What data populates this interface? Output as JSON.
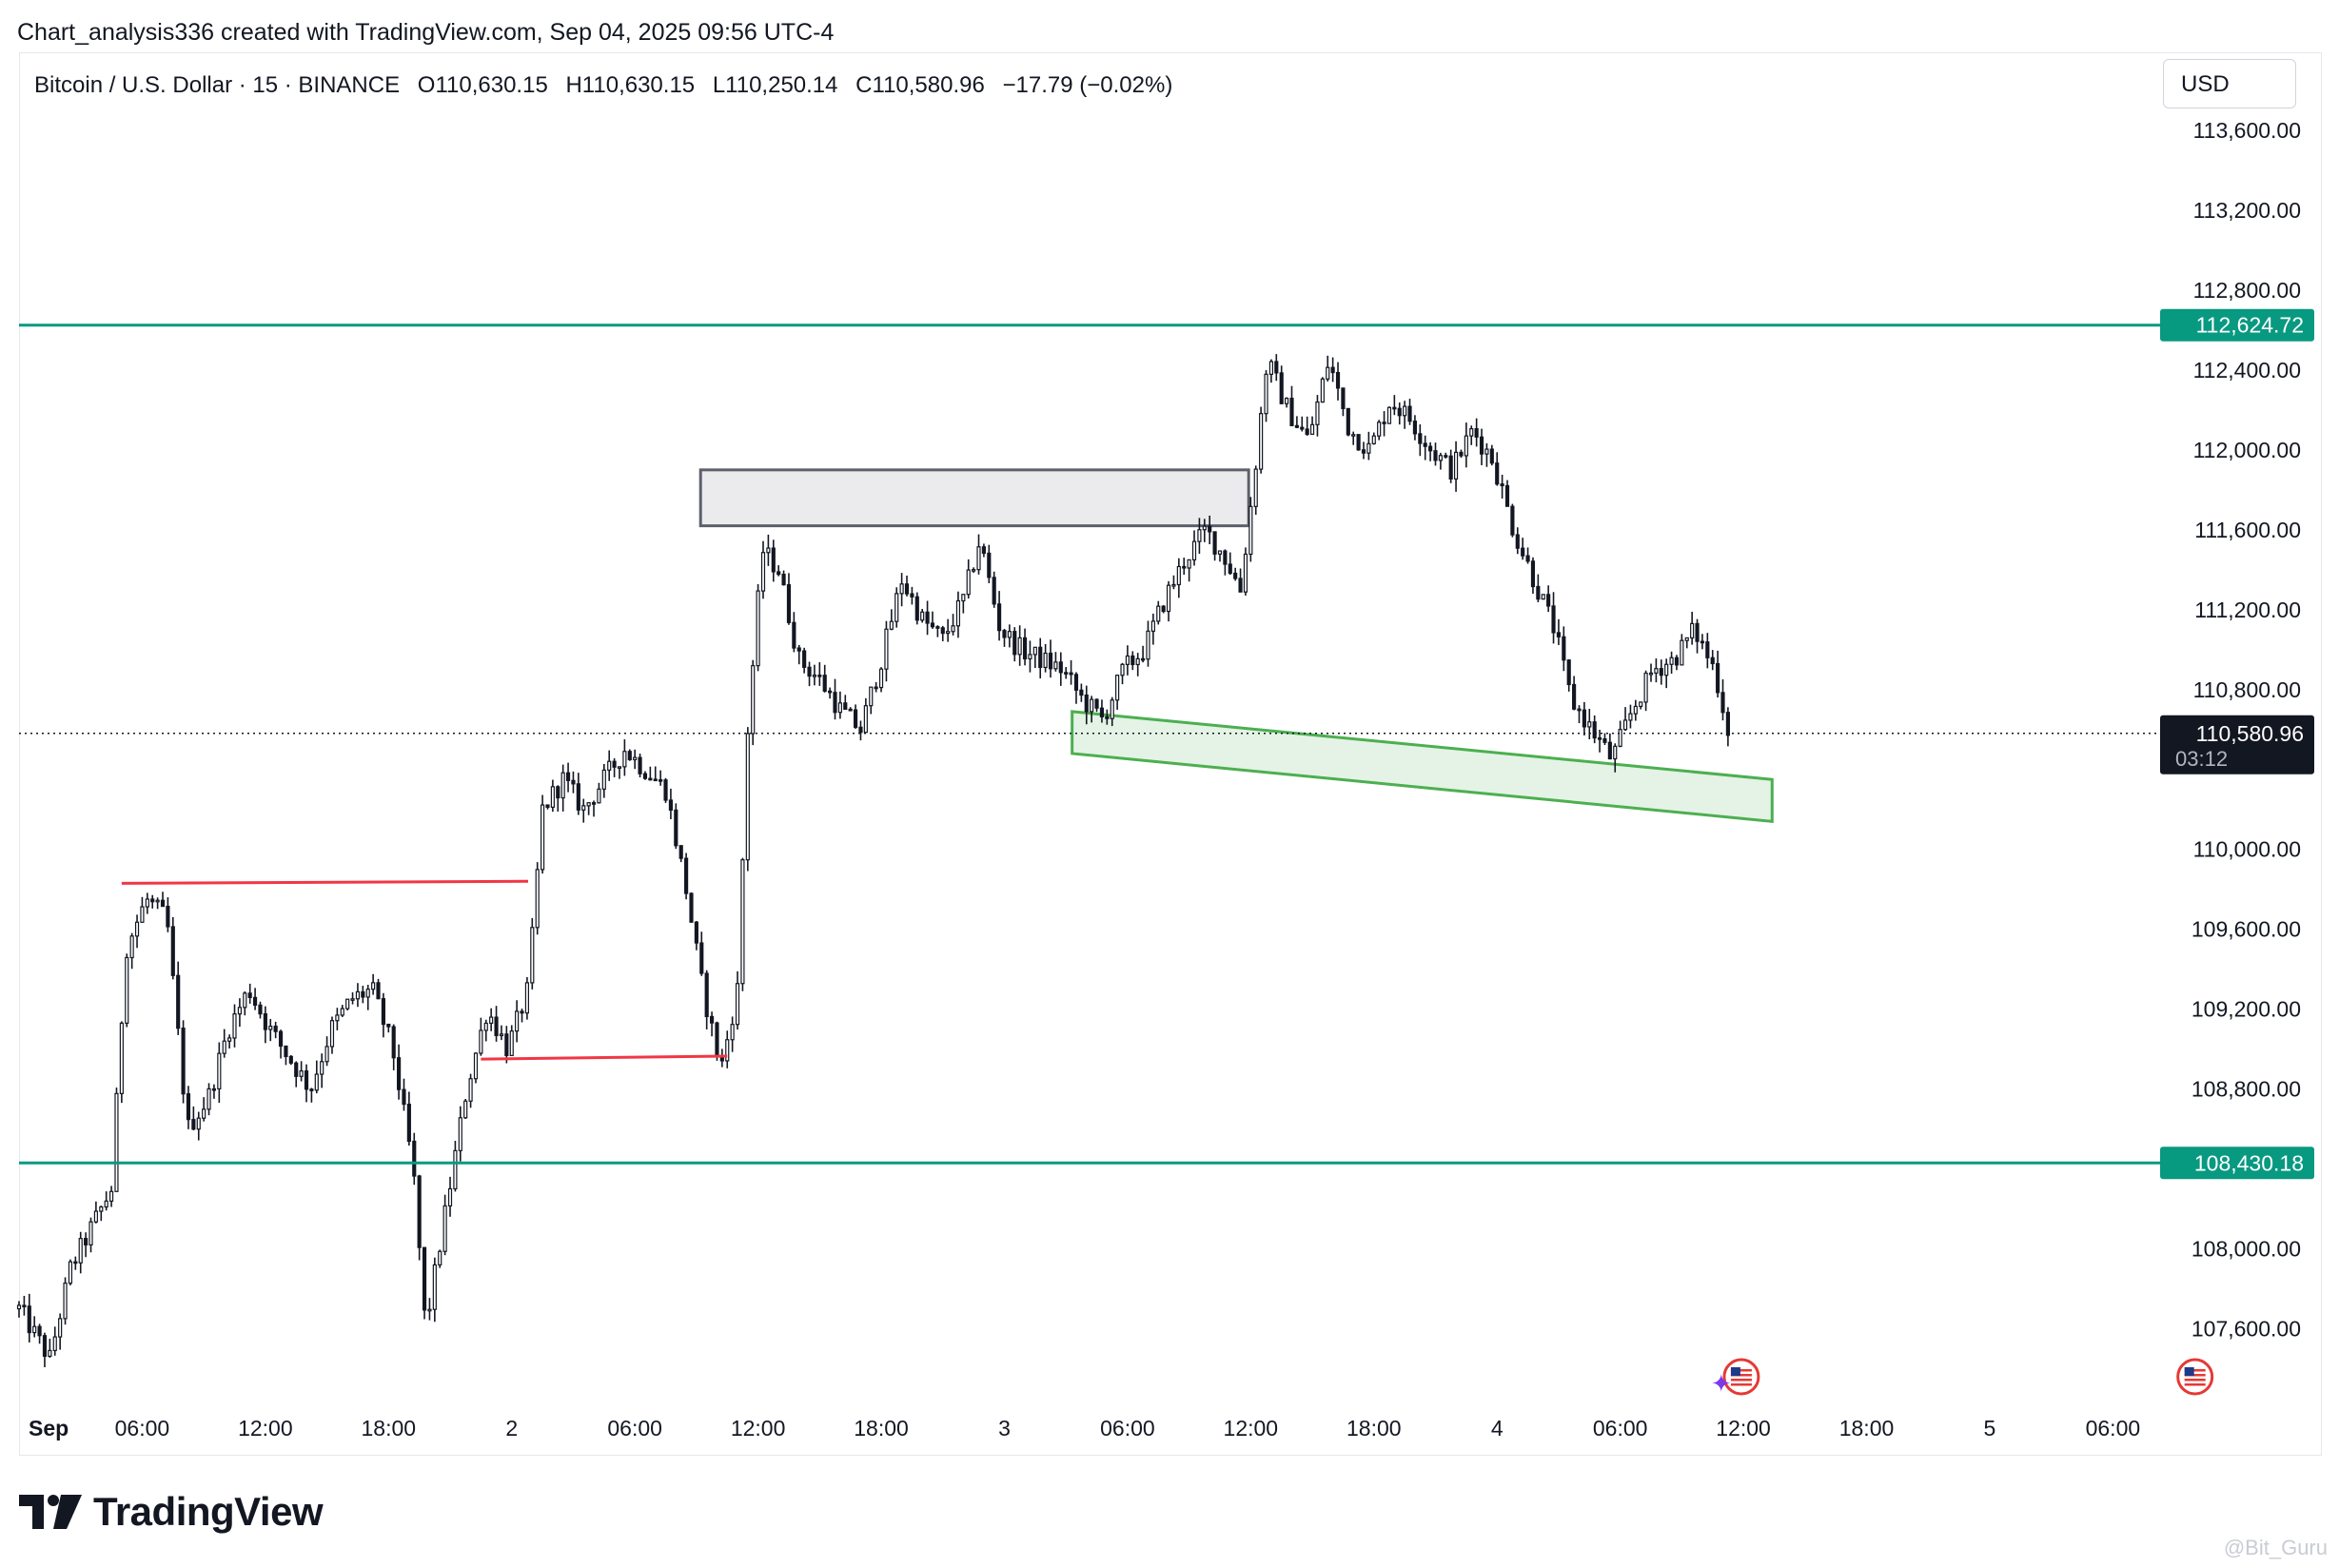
{
  "caption": "Chart_analysis336 created with TradingView.com, Sep 04, 2025 09:56 UTC-4",
  "legend": {
    "symbol": "Bitcoin / U.S. Dollar · 15 · BINANCE",
    "open": "O110,630.15",
    "high": "H110,630.15",
    "low": "L110,250.14",
    "close": "C110,580.96",
    "change": "−17.79 (−0.02%)"
  },
  "currency": "USD",
  "brand": "TradingView",
  "watermark": "@Bit_Guru",
  "colors": {
    "candle": "#131722",
    "level_line": "#089981",
    "red_line": "#f23645",
    "green_zone": "#4caf50",
    "gray_zone": "#787b86"
  },
  "chart_data": {
    "type": "candlestick",
    "timeframe": "15",
    "ylim": [
      107250,
      113800
    ],
    "y_ticks": [
      {
        "value": 113600,
        "label": "113,600.00"
      },
      {
        "value": 113200,
        "label": "113,200.00"
      },
      {
        "value": 112800,
        "label": "112,800.00"
      },
      {
        "value": 112400,
        "label": "112,400.00"
      },
      {
        "value": 112000,
        "label": "112,000.00"
      },
      {
        "value": 111600,
        "label": "111,600.00"
      },
      {
        "value": 111200,
        "label": "111,200.00"
      },
      {
        "value": 110800,
        "label": "110,800.00"
      },
      {
        "value": 110000,
        "label": "110,000.00"
      },
      {
        "value": 109600,
        "label": "109,600.00"
      },
      {
        "value": 109200,
        "label": "109,200.00"
      },
      {
        "value": 108800,
        "label": "108,800.00"
      },
      {
        "value": 108000,
        "label": "108,000.00"
      },
      {
        "value": 107600,
        "label": "107,600.00"
      }
    ],
    "x_range_hours": [
      0,
      104.3
    ],
    "x_ticks": [
      {
        "hour": 0.25,
        "label": "Sep"
      },
      {
        "hour": 6,
        "label": "06:00"
      },
      {
        "hour": 12,
        "label": "12:00"
      },
      {
        "hour": 18,
        "label": "18:00"
      },
      {
        "hour": 24,
        "label": "2"
      },
      {
        "hour": 30,
        "label": "06:00"
      },
      {
        "hour": 36,
        "label": "12:00"
      },
      {
        "hour": 42,
        "label": "18:00"
      },
      {
        "hour": 48,
        "label": "3"
      },
      {
        "hour": 54,
        "label": "06:00"
      },
      {
        "hour": 60,
        "label": "12:00"
      },
      {
        "hour": 66,
        "label": "18:00"
      },
      {
        "hour": 72,
        "label": "4"
      },
      {
        "hour": 78,
        "label": "06:00"
      },
      {
        "hour": 84,
        "label": "12:00"
      },
      {
        "hour": 90,
        "label": "18:00"
      },
      {
        "hour": 96,
        "label": "5"
      },
      {
        "hour": 102,
        "label": "06:00"
      }
    ],
    "price_path": [
      [
        0,
        107700
      ],
      [
        1.5,
        107450
      ],
      [
        2.5,
        107900
      ],
      [
        3.5,
        108100
      ],
      [
        4.5,
        108300
      ],
      [
        5.2,
        109500
      ],
      [
        6.2,
        109750
      ],
      [
        7.2,
        109650
      ],
      [
        8.2,
        108600
      ],
      [
        9.2,
        108750
      ],
      [
        10.2,
        109100
      ],
      [
        11.2,
        109300
      ],
      [
        12.2,
        109100
      ],
      [
        13.2,
        108950
      ],
      [
        14.2,
        108800
      ],
      [
        15.2,
        109100
      ],
      [
        16.2,
        109250
      ],
      [
        17.2,
        109300
      ],
      [
        18.2,
        109000
      ],
      [
        19.2,
        108400
      ],
      [
        19.8,
        107600
      ],
      [
        20.8,
        108200
      ],
      [
        21.8,
        108800
      ],
      [
        22.8,
        109200
      ],
      [
        23.8,
        109000
      ],
      [
        24.8,
        109300
      ],
      [
        25.5,
        110200
      ],
      [
        26.5,
        110350
      ],
      [
        27.5,
        110200
      ],
      [
        28.5,
        110350
      ],
      [
        29.5,
        110500
      ],
      [
        30.5,
        110400
      ],
      [
        31.5,
        110300
      ],
      [
        32.5,
        109800
      ],
      [
        33.3,
        109300
      ],
      [
        34.2,
        108900
      ],
      [
        35.0,
        109300
      ],
      [
        35.5,
        110600
      ],
      [
        36.2,
        111500
      ],
      [
        37.0,
        111400
      ],
      [
        38.0,
        110950
      ],
      [
        39.0,
        110850
      ],
      [
        40.0,
        110700
      ],
      [
        41.0,
        110600
      ],
      [
        42.0,
        110950
      ],
      [
        43.0,
        111350
      ],
      [
        44.0,
        111150
      ],
      [
        45.0,
        111050
      ],
      [
        46.0,
        111250
      ],
      [
        46.8,
        111550
      ],
      [
        47.8,
        111100
      ],
      [
        48.8,
        111000
      ],
      [
        49.8,
        110950
      ],
      [
        50.8,
        110900
      ],
      [
        51.8,
        110750
      ],
      [
        52.8,
        110650
      ],
      [
        53.8,
        110900
      ],
      [
        54.8,
        111000
      ],
      [
        55.8,
        111250
      ],
      [
        56.8,
        111450
      ],
      [
        57.8,
        111600
      ],
      [
        58.8,
        111450
      ],
      [
        59.5,
        111300
      ],
      [
        60.1,
        111800
      ],
      [
        60.8,
        112450
      ],
      [
        61.8,
        112200
      ],
      [
        62.8,
        112050
      ],
      [
        63.8,
        112450
      ],
      [
        64.8,
        112100
      ],
      [
        65.8,
        112000
      ],
      [
        66.8,
        112250
      ],
      [
        67.8,
        112150
      ],
      [
        68.8,
        112000
      ],
      [
        69.8,
        111900
      ],
      [
        70.8,
        112100
      ],
      [
        71.8,
        111950
      ],
      [
        72.8,
        111600
      ],
      [
        73.8,
        111350
      ],
      [
        74.8,
        111100
      ],
      [
        75.6,
        110750
      ],
      [
        76.6,
        110600
      ],
      [
        77.6,
        110450
      ],
      [
        78.6,
        110700
      ],
      [
        79.6,
        110900
      ],
      [
        80.6,
        110950
      ],
      [
        81.6,
        111100
      ],
      [
        82.6,
        110900
      ],
      [
        83.3,
        110580.96
      ]
    ],
    "annotations": {
      "horizontal_levels": [
        {
          "price": 112624.72,
          "label": "112,624.72"
        },
        {
          "price": 108430.18,
          "label": "108,430.18"
        }
      ],
      "last_price": {
        "price": 110580.96,
        "label": "110,580.96",
        "countdown": "03:12"
      },
      "red_lines": [
        {
          "h1": 5.0,
          "p1": 109830,
          "h2": 24.8,
          "p2": 109840
        },
        {
          "h1": 22.5,
          "p1": 108950,
          "h2": 34.5,
          "p2": 108965
        }
      ],
      "gray_zone": {
        "h1": 33.2,
        "h2": 59.9,
        "top": 111900,
        "bottom": 111620
      },
      "green_channel": {
        "h1": 51.3,
        "top1": 110690,
        "bottom1": 110480,
        "h2": 85.4,
        "top2": 110350,
        "bottom2": 110140
      },
      "event_flags": [
        {
          "hour": 83.9
        },
        {
          "hour": 106.0
        }
      ]
    }
  }
}
